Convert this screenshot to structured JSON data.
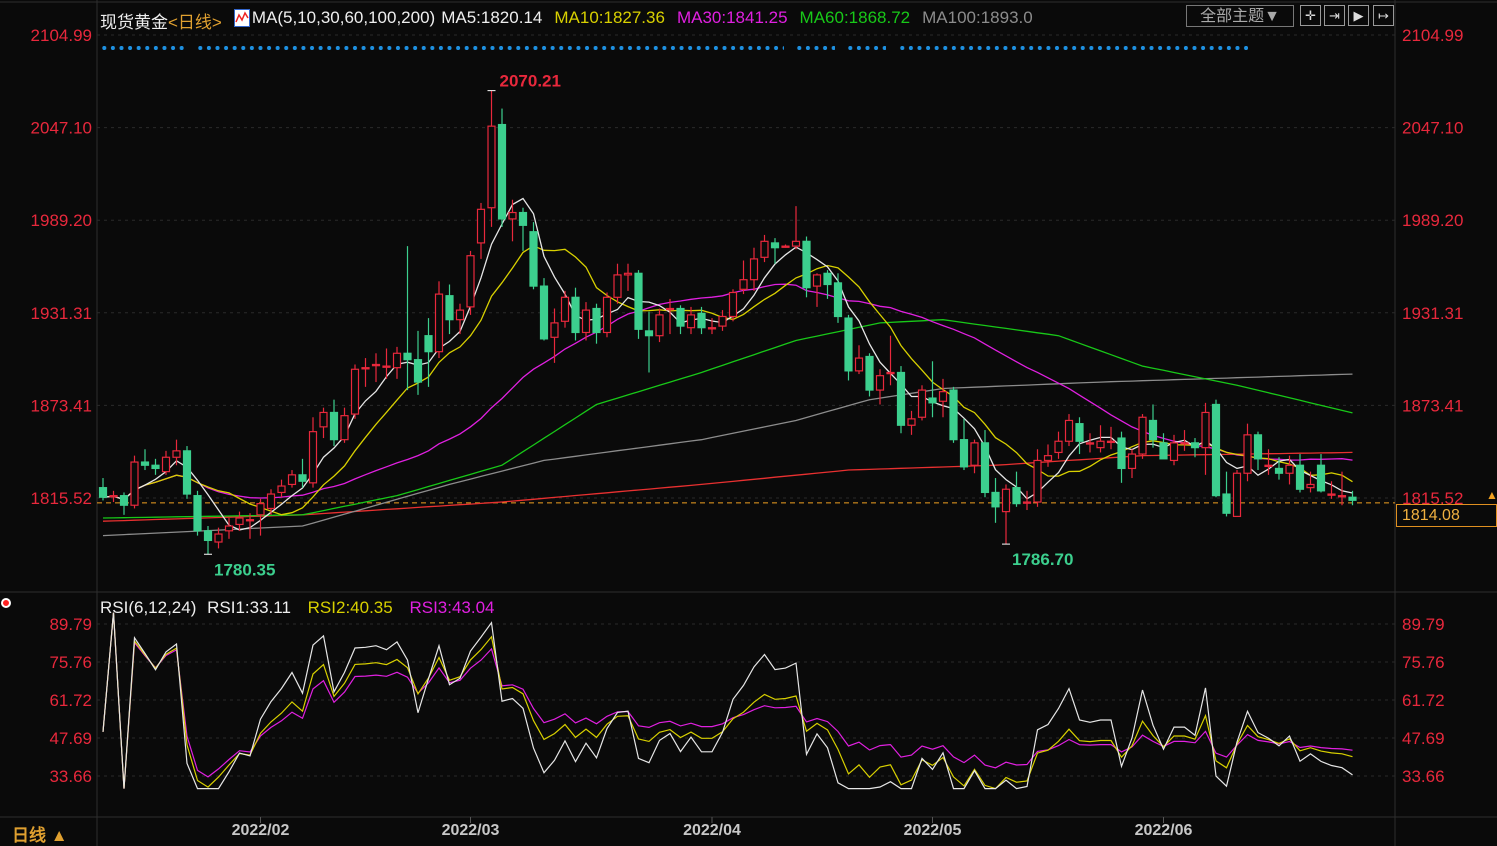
{
  "header": {
    "instrument": "现货黄金",
    "period_tag": "<日线>",
    "ma_params": "MA(5,10,30,60,100,200)",
    "ma5": "MA5:1820.14",
    "ma10": "MA10:1827.36",
    "ma30": "MA30:1841.25",
    "ma60": "MA60:1868.72",
    "ma100": "MA100:1893.0",
    "theme_button": "全部主题▼",
    "tools": [
      "crosshair-icon",
      "zoom-in-icon",
      "zoom-out-icon",
      "move-right-icon"
    ]
  },
  "rsi_header": {
    "params": "RSI(6,12,24)",
    "rsi1": "RSI1:33.11",
    "rsi2": "RSI2:40.35",
    "rsi3": "RSI3:43.04"
  },
  "footer": {
    "period": "日线 ▲"
  },
  "colors": {
    "up": "#e8283c",
    "down": "#3ccf8e",
    "ma5": "#e6e6e6",
    "ma10": "#d8d000",
    "ma30": "#e020e0",
    "ma60": "#18c818",
    "ma100": "#8c8c8c",
    "ma200": "#e83030",
    "axis": "#e8283c",
    "last": "#f0a020"
  },
  "chart_data": [
    {
      "type": "candlestick",
      "title": "现货黄金",
      "y_ticks": [
        "2104.99",
        "2047.10",
        "1989.20",
        "1931.31",
        "1873.41",
        "1815.52"
      ],
      "ylim": [
        1780.35,
        2104.99
      ],
      "x_ticks": [
        "2022/02",
        "2022/03",
        "2022/04",
        "2022/05",
        "2022/06"
      ],
      "x_tick_candle_index": [
        15,
        35,
        58,
        79,
        101
      ],
      "annotations": {
        "high": "2070.21",
        "low1": "1780.35",
        "low2": "1786.70"
      },
      "last_price": "1814.08",
      "candles_ohlc": [
        [
          1822,
          1828,
          1814,
          1816
        ],
        [
          1817,
          1820,
          1813,
          1817
        ],
        [
          1817,
          1819,
          1805,
          1811
        ],
        [
          1811,
          1842,
          1809,
          1838
        ],
        [
          1838,
          1846,
          1833,
          1836
        ],
        [
          1836,
          1840,
          1830,
          1834
        ],
        [
          1832,
          1845,
          1830,
          1841
        ],
        [
          1841,
          1852,
          1836,
          1845
        ],
        [
          1845,
          1848,
          1815,
          1818
        ],
        [
          1817,
          1820,
          1792,
          1795
        ],
        [
          1795,
          1798,
          1780.35,
          1789
        ],
        [
          1788,
          1797,
          1784,
          1793
        ],
        [
          1795,
          1803,
          1790,
          1798
        ],
        [
          1799,
          1807,
          1795,
          1803
        ],
        [
          1802,
          1806,
          1790,
          1802
        ],
        [
          1805,
          1815,
          1792,
          1812
        ],
        [
          1809,
          1821,
          1805,
          1818
        ],
        [
          1819,
          1827,
          1816,
          1823
        ],
        [
          1824,
          1833,
          1822,
          1830
        ],
        [
          1830,
          1840,
          1822,
          1826
        ],
        [
          1825,
          1866,
          1822,
          1857
        ],
        [
          1860,
          1872,
          1853,
          1869
        ],
        [
          1869,
          1877,
          1848,
          1852
        ],
        [
          1852,
          1872,
          1850,
          1867
        ],
        [
          1868,
          1899,
          1865,
          1896
        ],
        [
          1897,
          1903,
          1885,
          1897
        ],
        [
          1899,
          1906,
          1888,
          1899
        ],
        [
          1898,
          1909,
          1890,
          1898
        ],
        [
          1897,
          1910,
          1890,
          1906
        ],
        [
          1906,
          1973,
          1883,
          1902
        ],
        [
          1902,
          1920,
          1880,
          1888
        ],
        [
          1917,
          1928,
          1885,
          1907
        ],
        [
          1907,
          1951,
          1903,
          1943
        ],
        [
          1942,
          1949,
          1918,
          1927
        ],
        [
          1927,
          1937,
          1918,
          1933
        ],
        [
          1935,
          1970,
          1930,
          1967
        ],
        [
          1975,
          2000,
          1965,
          1996
        ],
        [
          1997,
          2070.21,
          1985,
          2048
        ],
        [
          2049,
          2059,
          1985,
          1990
        ],
        [
          1990,
          2002,
          1976,
          1994
        ],
        [
          1994,
          1997,
          1970,
          1986
        ],
        [
          1982,
          1988,
          1946,
          1948
        ],
        [
          1948,
          1953,
          1914,
          1915
        ],
        [
          1916,
          1934,
          1900,
          1925
        ],
        [
          1926,
          1945,
          1922,
          1941
        ],
        [
          1941,
          1947,
          1914,
          1919
        ],
        [
          1919,
          1938,
          1914,
          1933
        ],
        [
          1934,
          1937,
          1912,
          1919
        ],
        [
          1919,
          1944,
          1916,
          1941
        ],
        [
          1941,
          1962,
          1937,
          1955
        ],
        [
          1955,
          1962,
          1945,
          1956
        ],
        [
          1956,
          1958,
          1915,
          1921
        ],
        [
          1920,
          1932,
          1894,
          1917
        ],
        [
          1917,
          1934,
          1913,
          1930
        ],
        [
          1934,
          1940,
          1918,
          1934
        ],
        [
          1934,
          1936,
          1918,
          1923
        ],
        [
          1922,
          1935,
          1918,
          1930
        ],
        [
          1931,
          1935,
          1918,
          1922
        ],
        [
          1922,
          1928,
          1918,
          1922
        ],
        [
          1923,
          1933,
          1920,
          1929
        ],
        [
          1929,
          1946,
          1926,
          1944
        ],
        [
          1946,
          1964,
          1943,
          1952
        ],
        [
          1952,
          1972,
          1945,
          1965
        ],
        [
          1966,
          1980,
          1963,
          1976
        ],
        [
          1975,
          1978,
          1962,
          1972
        ],
        [
          1973,
          1974,
          1972,
          1973
        ],
        [
          1973,
          1998,
          1971,
          1976
        ],
        [
          1976,
          1979,
          1941,
          1947
        ],
        [
          1948,
          1956,
          1935,
          1955
        ],
        [
          1956,
          1958,
          1940,
          1949
        ],
        [
          1950,
          1956,
          1925,
          1929
        ],
        [
          1928,
          1930,
          1889,
          1895
        ],
        [
          1895,
          1911,
          1893,
          1903
        ],
        [
          1904,
          1906,
          1879,
          1883
        ],
        [
          1883,
          1896,
          1874,
          1892
        ],
        [
          1894,
          1917,
          1886,
          1894
        ],
        [
          1894,
          1898,
          1856,
          1861
        ],
        [
          1861,
          1870,
          1855,
          1865
        ],
        [
          1866,
          1886,
          1864,
          1883
        ],
        [
          1878,
          1901,
          1866,
          1875
        ],
        [
          1876,
          1890,
          1866,
          1882
        ],
        [
          1883,
          1885,
          1850,
          1852
        ],
        [
          1852,
          1865,
          1833,
          1835
        ],
        [
          1836,
          1852,
          1831,
          1850
        ],
        [
          1850,
          1858,
          1816,
          1819
        ],
        [
          1819,
          1828,
          1800,
          1810
        ],
        [
          1807,
          1824,
          1786.7,
          1821
        ],
        [
          1822,
          1832,
          1810,
          1812
        ],
        [
          1813,
          1820,
          1808,
          1813
        ],
        [
          1813,
          1846,
          1810,
          1839
        ],
        [
          1839,
          1849,
          1835,
          1842
        ],
        [
          1844,
          1857,
          1840,
          1851
        ],
        [
          1851,
          1868,
          1848,
          1864
        ],
        [
          1862,
          1866,
          1843,
          1851
        ],
        [
          1850,
          1856,
          1844,
          1850
        ],
        [
          1847,
          1861,
          1844,
          1851
        ],
        [
          1851,
          1860,
          1846,
          1851
        ],
        [
          1853,
          1857,
          1825,
          1834
        ],
        [
          1834,
          1846,
          1828,
          1843
        ],
        [
          1843,
          1868,
          1840,
          1866
        ],
        [
          1864,
          1874,
          1847,
          1852
        ],
        [
          1850,
          1856,
          1840,
          1840
        ],
        [
          1839,
          1855,
          1836,
          1850
        ],
        [
          1850,
          1858,
          1845,
          1850
        ],
        [
          1850,
          1853,
          1841,
          1847
        ],
        [
          1847,
          1875,
          1830,
          1869
        ],
        [
          1874,
          1877,
          1816,
          1817
        ],
        [
          1818,
          1832,
          1804,
          1806
        ],
        [
          1804,
          1833,
          1804,
          1831
        ],
        [
          1831,
          1862,
          1826,
          1855
        ],
        [
          1855,
          1857,
          1833,
          1840
        ],
        [
          1836,
          1846,
          1830,
          1836
        ],
        [
          1834,
          1841,
          1827,
          1831
        ],
        [
          1831,
          1842,
          1824,
          1836
        ],
        [
          1836,
          1843,
          1819,
          1821
        ],
        [
          1822,
          1832,
          1819,
          1824
        ],
        [
          1836,
          1843,
          1819,
          1820
        ],
        [
          1818,
          1826,
          1815,
          1818
        ],
        [
          1817,
          1832,
          1811,
          1817
        ],
        [
          1816,
          1820,
          1811,
          1814.08
        ]
      ],
      "series": [
        {
          "name": "MA5",
          "period": 5
        },
        {
          "name": "MA10",
          "period": 10
        },
        {
          "name": "MA30",
          "period": 30
        },
        {
          "name": "MA60",
          "points": [
            [
              0,
              1803
            ],
            [
              19,
              1805
            ],
            [
              28,
              1817
            ],
            [
              38,
              1836
            ],
            [
              47,
              1874
            ],
            [
              57,
              1894
            ],
            [
              66,
              1914
            ],
            [
              74,
              1925
            ],
            [
              80,
              1927
            ],
            [
              91,
              1917
            ],
            [
              99,
              1898
            ],
            [
              108,
              1886
            ],
            [
              119,
              1868.72
            ]
          ]
        },
        {
          "name": "MA100",
          "points": [
            [
              0,
              1792
            ],
            [
              19,
              1798
            ],
            [
              33,
              1824
            ],
            [
              42,
              1839
            ],
            [
              57,
              1852
            ],
            [
              66,
              1864
            ],
            [
              73,
              1877
            ],
            [
              80,
              1884
            ],
            [
              95,
              1888
            ],
            [
              119,
              1893.0
            ]
          ]
        },
        {
          "name": "MA200",
          "points": [
            [
              0,
              1801
            ],
            [
              19,
              1805
            ],
            [
              38,
              1813
            ],
            [
              57,
              1824
            ],
            [
              71,
              1833
            ],
            [
              85,
              1836
            ],
            [
              99,
              1842
            ],
            [
              119,
              1844
            ]
          ]
        }
      ]
    },
    {
      "type": "line",
      "title": "RSI(6,12,24)",
      "y_ticks": [
        "89.79",
        "75.76",
        "61.72",
        "47.69",
        "33.66"
      ],
      "ylim": [
        28,
        95
      ],
      "series": [
        {
          "name": "RSI1",
          "period": 6
        },
        {
          "name": "RSI2",
          "period": 12
        },
        {
          "name": "RSI3",
          "period": 24
        }
      ]
    }
  ]
}
